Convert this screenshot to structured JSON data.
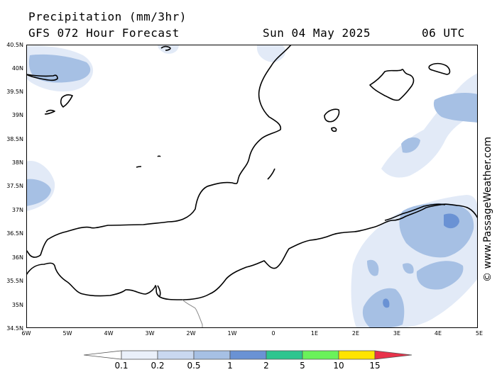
{
  "header": {
    "title": "Precipitation (mm/3hr)",
    "subtitle": "GFS 072 Hour Forecast",
    "date": "Sun 04 May 2025",
    "time": "06 UTC"
  },
  "watermark": "© www.PassageWeather.com",
  "axes": {
    "lat_labels": [
      "40.5N",
      "40N",
      "39.5N",
      "39N",
      "38.5N",
      "38N",
      "37.5N",
      "37N",
      "36.5N",
      "36N",
      "35.5N",
      "35N",
      "34.5N"
    ],
    "lon_labels": [
      "6W",
      "5W",
      "4W",
      "3W",
      "2W",
      "1W",
      "0",
      "1E",
      "2E",
      "3E",
      "4E",
      "5E"
    ]
  },
  "legend": {
    "labels": [
      "0.1",
      "0.2",
      "0.5",
      "1",
      "2",
      "5",
      "10",
      "15"
    ],
    "colors": [
      "#eaf0fa",
      "#c9d8f0",
      "#a6c0e4",
      "#6a92d4",
      "#2ec58f",
      "#6af25a",
      "#ffe400",
      "#ff8c00",
      "#e8324a"
    ]
  },
  "colors": {
    "land_outline": "#000000",
    "precip_light": "#e2eaf7",
    "precip_mid": "#a6c0e4",
    "precip_heavy": "#6a92d4"
  }
}
